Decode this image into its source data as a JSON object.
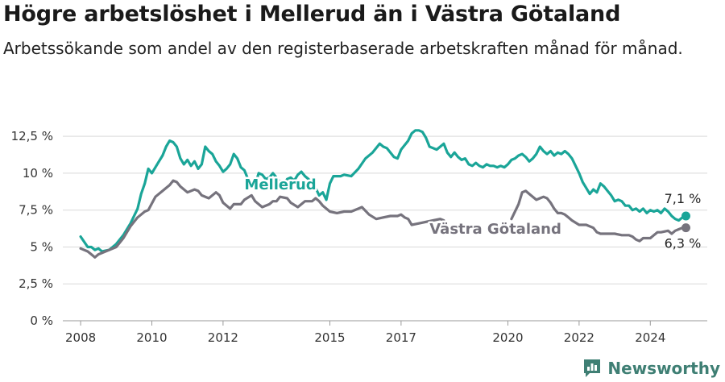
{
  "title": "Högre arbetslöshet i Mellerud än i Västra Götaland",
  "subtitle": "Arbetssökande som andel av den registerbaserade arbetskraften månad för månad.",
  "brand": "Newsworthy",
  "colors": {
    "mellerud": "#1aa598",
    "vg": "#76737d",
    "grid": "#d9d9d9",
    "text": "#333333"
  },
  "chart_data": {
    "type": "line",
    "ylim": [
      0,
      13
    ],
    "y_ticks": [
      0,
      2.5,
      5,
      7.5,
      10,
      12.5
    ],
    "y_tick_labels": [
      "0 %",
      "2,5 %",
      "5 %",
      "7,5 %",
      "10 %",
      "12,5 %"
    ],
    "xlim": [
      2007.5,
      2025.6
    ],
    "x_ticks": [
      2008,
      2010,
      2012,
      2015,
      2017,
      2020,
      2022,
      2024
    ],
    "x_tick_labels": [
      "2008",
      "2010",
      "2012",
      "2015",
      "2017",
      "2020",
      "2022",
      "2024"
    ],
    "grid": true,
    "series": [
      {
        "name": "Mellerud",
        "color": "#1aa598",
        "end_label": "7,1 %",
        "gaps": [],
        "points": [
          [
            2008.0,
            5.7
          ],
          [
            2008.2,
            5.0
          ],
          [
            2008.3,
            5.0
          ],
          [
            2008.4,
            4.8
          ],
          [
            2008.5,
            4.9
          ],
          [
            2008.6,
            4.7
          ],
          [
            2008.8,
            4.8
          ],
          [
            2009.0,
            5.2
          ],
          [
            2009.2,
            5.8
          ],
          [
            2009.4,
            6.6
          ],
          [
            2009.6,
            7.6
          ],
          [
            2009.7,
            8.6
          ],
          [
            2009.8,
            9.3
          ],
          [
            2009.9,
            10.3
          ],
          [
            2010.0,
            10.0
          ],
          [
            2010.2,
            10.8
          ],
          [
            2010.3,
            11.2
          ],
          [
            2010.4,
            11.8
          ],
          [
            2010.5,
            12.2
          ],
          [
            2010.6,
            12.1
          ],
          [
            2010.7,
            11.8
          ],
          [
            2010.8,
            11.0
          ],
          [
            2010.9,
            10.6
          ],
          [
            2011.0,
            10.9
          ],
          [
            2011.1,
            10.5
          ],
          [
            2011.2,
            10.8
          ],
          [
            2011.3,
            10.3
          ],
          [
            2011.4,
            10.6
          ],
          [
            2011.5,
            11.8
          ],
          [
            2011.6,
            11.5
          ],
          [
            2011.7,
            11.3
          ],
          [
            2011.8,
            10.8
          ],
          [
            2011.9,
            10.5
          ],
          [
            2012.0,
            10.1
          ],
          [
            2012.1,
            10.3
          ],
          [
            2012.2,
            10.6
          ],
          [
            2012.3,
            11.3
          ],
          [
            2012.4,
            11.0
          ],
          [
            2012.5,
            10.4
          ],
          [
            2012.6,
            10.2
          ],
          [
            2012.7,
            9.6
          ],
          [
            2012.8,
            9.4
          ],
          [
            2012.9,
            9.2
          ],
          [
            2013.0,
            10.0
          ],
          [
            2013.1,
            9.9
          ],
          [
            2013.2,
            9.6
          ],
          [
            2013.3,
            9.7
          ],
          [
            2013.4,
            10.0
          ],
          [
            2013.5,
            9.7
          ],
          [
            2013.6,
            9.4
          ],
          [
            2013.7,
            9.2
          ],
          [
            2013.8,
            9.6
          ],
          [
            2013.9,
            9.7
          ],
          [
            2014.0,
            9.5
          ],
          [
            2014.1,
            9.9
          ],
          [
            2014.2,
            10.1
          ],
          [
            2014.3,
            9.8
          ],
          [
            2014.4,
            9.6
          ],
          [
            2014.5,
            9.3
          ],
          [
            2014.6,
            9.0
          ],
          [
            2014.7,
            8.5
          ],
          [
            2014.8,
            8.7
          ],
          [
            2014.9,
            8.2
          ],
          [
            2015.0,
            9.3
          ],
          [
            2015.1,
            9.8
          ],
          [
            2015.3,
            9.8
          ],
          [
            2015.4,
            9.9
          ],
          [
            2015.6,
            9.8
          ],
          [
            2015.8,
            10.3
          ],
          [
            2016.0,
            11.0
          ],
          [
            2016.2,
            11.4
          ],
          [
            2016.4,
            12.0
          ],
          [
            2016.5,
            11.8
          ],
          [
            2016.6,
            11.7
          ],
          [
            2016.7,
            11.4
          ],
          [
            2016.8,
            11.1
          ],
          [
            2016.9,
            11.0
          ],
          [
            2017.0,
            11.6
          ],
          [
            2017.2,
            12.2
          ],
          [
            2017.3,
            12.7
          ],
          [
            2017.4,
            12.9
          ],
          [
            2017.5,
            12.9
          ],
          [
            2017.6,
            12.8
          ],
          [
            2017.7,
            12.4
          ],
          [
            2017.8,
            11.8
          ],
          [
            2017.9,
            11.7
          ],
          [
            2018.0,
            11.6
          ],
          [
            2018.1,
            11.8
          ],
          [
            2018.2,
            12.0
          ],
          [
            2018.3,
            11.4
          ],
          [
            2018.4,
            11.1
          ],
          [
            2018.5,
            11.4
          ],
          [
            2018.6,
            11.1
          ],
          [
            2018.7,
            10.9
          ],
          [
            2018.8,
            11.0
          ],
          [
            2018.9,
            10.6
          ],
          [
            2019.0,
            10.5
          ],
          [
            2019.1,
            10.7
          ],
          [
            2019.2,
            10.5
          ],
          [
            2019.3,
            10.4
          ],
          [
            2019.4,
            10.6
          ],
          [
            2019.5,
            10.5
          ],
          [
            2019.6,
            10.5
          ],
          [
            2019.7,
            10.4
          ],
          [
            2019.8,
            10.5
          ],
          [
            2019.9,
            10.4
          ],
          [
            2020.0,
            10.6
          ],
          [
            2020.1,
            10.9
          ],
          [
            2020.2,
            11.0
          ],
          [
            2020.3,
            11.2
          ],
          [
            2020.4,
            11.3
          ],
          [
            2020.5,
            11.1
          ],
          [
            2020.6,
            10.8
          ],
          [
            2020.7,
            11.0
          ],
          [
            2020.8,
            11.3
          ],
          [
            2020.9,
            11.8
          ],
          [
            2021.0,
            11.5
          ],
          [
            2021.1,
            11.3
          ],
          [
            2021.2,
            11.5
          ],
          [
            2021.3,
            11.2
          ],
          [
            2021.4,
            11.4
          ],
          [
            2021.5,
            11.3
          ],
          [
            2021.6,
            11.5
          ],
          [
            2021.7,
            11.3
          ],
          [
            2021.8,
            11.0
          ],
          [
            2021.9,
            10.5
          ],
          [
            2022.0,
            10.0
          ],
          [
            2022.1,
            9.4
          ],
          [
            2022.2,
            9.0
          ],
          [
            2022.3,
            8.6
          ],
          [
            2022.4,
            8.9
          ],
          [
            2022.5,
            8.7
          ],
          [
            2022.6,
            9.3
          ],
          [
            2022.7,
            9.1
          ],
          [
            2022.8,
            8.8
          ],
          [
            2022.9,
            8.5
          ],
          [
            2023.0,
            8.1
          ],
          [
            2023.1,
            8.2
          ],
          [
            2023.2,
            8.1
          ],
          [
            2023.3,
            7.8
          ],
          [
            2023.4,
            7.8
          ],
          [
            2023.5,
            7.5
          ],
          [
            2023.6,
            7.6
          ],
          [
            2023.7,
            7.4
          ],
          [
            2023.8,
            7.6
          ],
          [
            2023.9,
            7.3
          ],
          [
            2024.0,
            7.5
          ],
          [
            2024.1,
            7.4
          ],
          [
            2024.2,
            7.5
          ],
          [
            2024.3,
            7.3
          ],
          [
            2024.4,
            7.6
          ],
          [
            2024.5,
            7.4
          ],
          [
            2024.6,
            7.1
          ],
          [
            2024.7,
            6.9
          ],
          [
            2024.8,
            6.8
          ],
          [
            2024.9,
            7.0
          ],
          [
            2025.0,
            7.1
          ]
        ]
      },
      {
        "name": "Västra Götaland",
        "color": "#76737d",
        "end_label": "6,3 %",
        "gaps": [
          [
            2017.2,
            2020.1
          ]
        ],
        "points": [
          [
            2008.0,
            4.9
          ],
          [
            2008.2,
            4.7
          ],
          [
            2008.3,
            4.5
          ],
          [
            2008.4,
            4.3
          ],
          [
            2008.5,
            4.5
          ],
          [
            2008.7,
            4.7
          ],
          [
            2009.0,
            5.0
          ],
          [
            2009.2,
            5.6
          ],
          [
            2009.4,
            6.4
          ],
          [
            2009.6,
            7.0
          ],
          [
            2009.8,
            7.4
          ],
          [
            2009.9,
            7.5
          ],
          [
            2010.1,
            8.4
          ],
          [
            2010.3,
            8.8
          ],
          [
            2010.5,
            9.2
          ],
          [
            2010.6,
            9.5
          ],
          [
            2010.7,
            9.4
          ],
          [
            2010.8,
            9.1
          ],
          [
            2011.0,
            8.7
          ],
          [
            2011.2,
            8.9
          ],
          [
            2011.3,
            8.8
          ],
          [
            2011.4,
            8.5
          ],
          [
            2011.6,
            8.3
          ],
          [
            2011.8,
            8.7
          ],
          [
            2011.9,
            8.5
          ],
          [
            2012.0,
            8.0
          ],
          [
            2012.2,
            7.6
          ],
          [
            2012.3,
            7.9
          ],
          [
            2012.5,
            7.9
          ],
          [
            2012.6,
            8.2
          ],
          [
            2012.8,
            8.5
          ],
          [
            2012.9,
            8.1
          ],
          [
            2013.1,
            7.7
          ],
          [
            2013.3,
            7.9
          ],
          [
            2013.4,
            8.1
          ],
          [
            2013.5,
            8.1
          ],
          [
            2013.6,
            8.4
          ],
          [
            2013.8,
            8.3
          ],
          [
            2013.9,
            8.0
          ],
          [
            2014.1,
            7.7
          ],
          [
            2014.2,
            7.9
          ],
          [
            2014.3,
            8.1
          ],
          [
            2014.5,
            8.1
          ],
          [
            2014.6,
            8.3
          ],
          [
            2014.7,
            8.1
          ],
          [
            2014.8,
            7.8
          ],
          [
            2015.0,
            7.4
          ],
          [
            2015.2,
            7.3
          ],
          [
            2015.4,
            7.4
          ],
          [
            2015.6,
            7.4
          ],
          [
            2015.8,
            7.6
          ],
          [
            2015.9,
            7.7
          ],
          [
            2016.1,
            7.2
          ],
          [
            2016.3,
            6.9
          ],
          [
            2016.5,
            7.0
          ],
          [
            2016.7,
            7.1
          ],
          [
            2016.9,
            7.1
          ],
          [
            2017.0,
            7.2
          ],
          [
            2017.1,
            7.0
          ],
          [
            2017.2,
            6.9
          ],
          [
            2017.3,
            6.5
          ],
          [
            2017.5,
            6.6
          ],
          [
            2017.7,
            6.7
          ],
          [
            2017.9,
            6.8
          ],
          [
            2018.1,
            6.9
          ],
          [
            2018.2,
            6.8
          ],
          [
            2020.1,
            6.9
          ],
          [
            2020.3,
            7.9
          ],
          [
            2020.4,
            8.7
          ],
          [
            2020.5,
            8.8
          ],
          [
            2020.6,
            8.6
          ],
          [
            2020.7,
            8.4
          ],
          [
            2020.8,
            8.2
          ],
          [
            2020.9,
            8.3
          ],
          [
            2021.0,
            8.4
          ],
          [
            2021.1,
            8.3
          ],
          [
            2021.2,
            8.0
          ],
          [
            2021.3,
            7.6
          ],
          [
            2021.4,
            7.3
          ],
          [
            2021.5,
            7.3
          ],
          [
            2021.6,
            7.2
          ],
          [
            2021.7,
            7.0
          ],
          [
            2021.8,
            6.8
          ],
          [
            2022.0,
            6.5
          ],
          [
            2022.2,
            6.5
          ],
          [
            2022.4,
            6.3
          ],
          [
            2022.5,
            6.0
          ],
          [
            2022.6,
            5.9
          ],
          [
            2022.8,
            5.9
          ],
          [
            2023.0,
            5.9
          ],
          [
            2023.2,
            5.8
          ],
          [
            2023.4,
            5.8
          ],
          [
            2023.5,
            5.7
          ],
          [
            2023.6,
            5.5
          ],
          [
            2023.7,
            5.4
          ],
          [
            2023.8,
            5.6
          ],
          [
            2024.0,
            5.6
          ],
          [
            2024.1,
            5.8
          ],
          [
            2024.2,
            6.0
          ],
          [
            2024.3,
            6.0
          ],
          [
            2024.5,
            6.1
          ],
          [
            2024.6,
            5.9
          ],
          [
            2024.7,
            6.1
          ],
          [
            2024.8,
            6.2
          ],
          [
            2024.9,
            6.3
          ],
          [
            2025.0,
            6.3
          ]
        ]
      }
    ]
  }
}
